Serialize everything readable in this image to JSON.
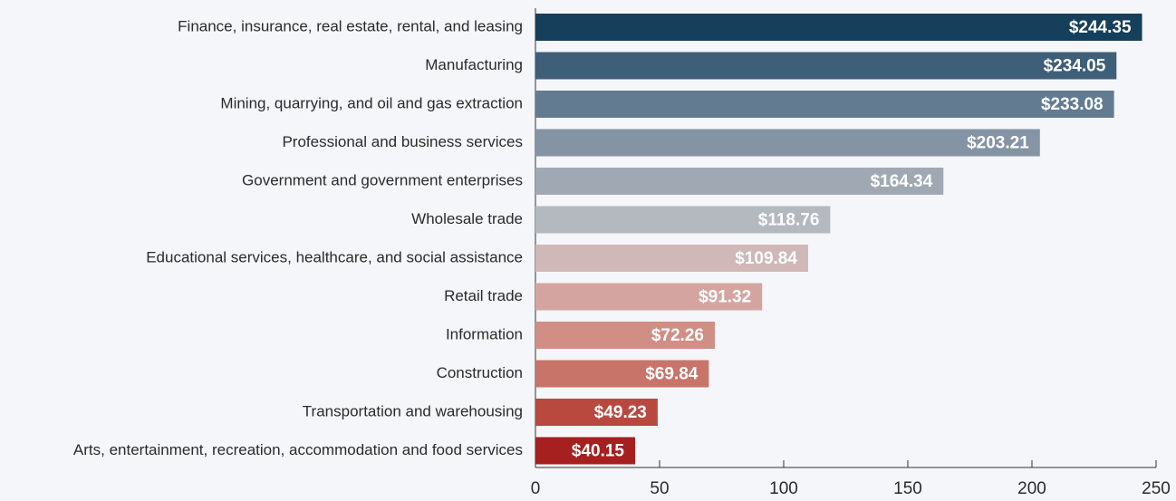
{
  "chart_data": {
    "type": "bar",
    "orientation": "horizontal",
    "categories": [
      "Finance, insurance, real estate, rental, and leasing",
      "Manufacturing",
      "Mining, quarrying, and oil and gas extraction",
      "Professional and business services",
      "Government and government enterprises",
      "Wholesale trade",
      "Educational services, healthcare, and social assistance",
      "Retail trade",
      "Information",
      "Construction",
      "Transportation and warehousing",
      "Arts, entertainment, recreation, accommodation and food services"
    ],
    "values": [
      244.35,
      234.05,
      233.08,
      203.21,
      164.34,
      118.76,
      109.84,
      91.32,
      72.26,
      69.84,
      49.23,
      40.15
    ],
    "value_labels": [
      "$244.35",
      "$234.05",
      "$233.08",
      "$203.21",
      "$164.34",
      "$118.76",
      "$109.84",
      "$91.32",
      "$72.26",
      "$69.84",
      "$49.23",
      "$40.15"
    ],
    "colors": [
      "#153f5a",
      "#3f5f78",
      "#637b91",
      "#8494a4",
      "#a0a9b3",
      "#b4b9c0",
      "#d0b8b8",
      "#d4a5a0",
      "#d08e84",
      "#c87468",
      "#b9483f",
      "#a5201f"
    ],
    "xlim": [
      0,
      250
    ],
    "xticks": [
      0,
      50,
      100,
      150,
      200,
      250
    ],
    "grid": false
  }
}
